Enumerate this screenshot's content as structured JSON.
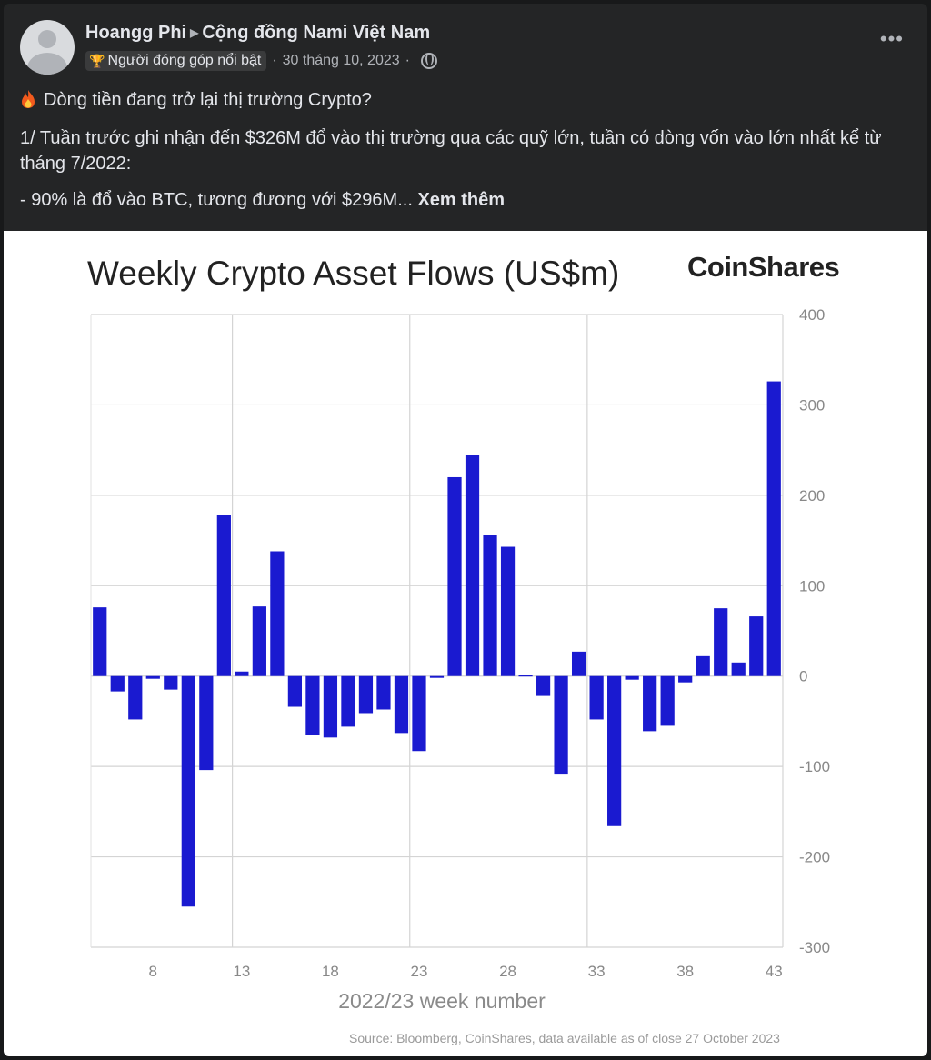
{
  "post": {
    "author": "Hoangg Phi",
    "group": "Cộng đồng Nami Việt Nam",
    "badge": "Người đóng góp nổi bật",
    "separator": "·",
    "date": "30 tháng 10, 2023",
    "more_icon": "more-options-icon",
    "text": {
      "line1": "Dòng tiền đang trở lại thị trường Crypto?",
      "line2": "1/ Tuần trước ghi nhận đến $326M đổ vào thị trường qua các quỹ lớn, tuần có dòng vốn vào lớn nhất kể từ tháng 7/2022:",
      "line3": "- 90% là đổ vào BTC, tương đương với $296M...",
      "see_more": "Xem thêm"
    }
  },
  "colors": {
    "background": "#18191a",
    "card": "#242526",
    "bar": "#1a1ad0",
    "text": "#e4e6eb",
    "muted": "#b0b3b8"
  },
  "chart_data": {
    "type": "bar",
    "title": "Weekly Crypto Asset Flows (US$m)",
    "brand": "CoinShares",
    "xlabel": "2022/23 week number",
    "ylabel": "",
    "source": "Source: Bloomberg, CoinShares, data available as of close 27 October 2023",
    "ylim": [
      -300,
      400
    ],
    "yticks": [
      400,
      300,
      200,
      100,
      0,
      -100,
      -200,
      -300
    ],
    "y_axis_side": "right",
    "grid": true,
    "x_ticks": [
      8,
      13,
      18,
      23,
      28,
      33,
      38,
      43
    ],
    "x_grid_weeks": [
      13,
      23,
      33
    ],
    "categories": [
      5,
      6,
      7,
      8,
      9,
      10,
      11,
      12,
      13,
      14,
      15,
      16,
      17,
      18,
      19,
      20,
      21,
      22,
      23,
      24,
      25,
      26,
      27,
      28,
      29,
      30,
      31,
      32,
      33,
      34,
      35,
      36,
      37,
      38,
      39,
      40,
      41,
      42,
      43
    ],
    "values": [
      76,
      -17,
      -48,
      -3,
      -15,
      -255,
      -104,
      178,
      5,
      77,
      138,
      -34,
      -65,
      -68,
      -56,
      -41,
      -37,
      -63,
      -83,
      -2,
      220,
      245,
      156,
      143,
      1,
      -22,
      -108,
      27,
      -48,
      -166,
      -4,
      -61,
      -55,
      -7,
      22,
      75,
      15,
      66,
      326
    ]
  }
}
